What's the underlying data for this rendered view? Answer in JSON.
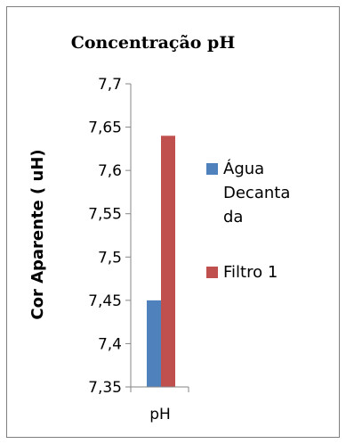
{
  "chart_data": {
    "type": "bar",
    "title": "Concentração pH",
    "ylabel": "Cor Aparente ( uH)",
    "xlabel": "",
    "categories": [
      "pH"
    ],
    "series": [
      {
        "name": "Água Decantada",
        "legend_lines": [
          "Água",
          "Decanta",
          "da"
        ],
        "values": [
          7.45
        ],
        "color": "#4F81BD"
      },
      {
        "name": "Filtro 1",
        "legend_lines": [
          "Filtro 1"
        ],
        "values": [
          7.64
        ],
        "color": "#C0504D"
      }
    ],
    "ylim": [
      7.35,
      7.7
    ],
    "yticks": [
      "7,35",
      "7,4",
      "7,45",
      "7,5",
      "7,55",
      "7,6",
      "7,65",
      "7,7"
    ],
    "grid": false,
    "legend": "right"
  }
}
